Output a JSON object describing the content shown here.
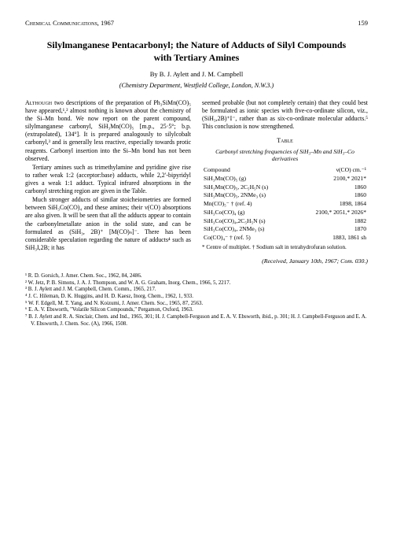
{
  "header": {
    "journal": "Chemical Communications, 1967",
    "page": "159"
  },
  "title": "Silylmanganese Pentacarbonyl; the Nature of Adducts of Silyl Compounds with Tertiary Amines",
  "authors": "By B. J. Aylett and J. M. Campbell",
  "affiliation": "(Chemistry Department, Westfield College, London, N.W.3.)",
  "body": {
    "left": [
      "Although two descriptions of the preparation of Ph₃SiMn(CO)₅ have appeared,¹,² almost nothing is known about the chemistry of the Si–Mn bond. We now report on the parent compound, silylmanganese carbonyl, SiH₃Mn(CO)₅ [m.p., 25·5°; b.p. (extrapolated), 134°]. It is prepared analogously to silylcobalt carbonyl,³ and is generally less reactive, especially towards protic reagents. Carbonyl insertion into the Si–Mn bond has not been observed.",
      "Tertiary amines such as trimethylamine and pyridine give rise to rather weak 1:2 (acceptor:base) adducts, while 2,2′-bipyridyl gives a weak 1:1 adduct. Typical infrared absorptions in the carbonyl stretching region are given in the Table.",
      "Much stronger adducts of similar stoicheiometries are formed between SiH₃Co(CO)₄ and these amines; their ν(CO) absorptions are also given. It will be seen that all the adducts appear to contain the carbonylmetallate anion in the solid state, and can be formulated as (SiH₃, 2B)⁺ [M(CO)ₙ]⁻. There has been considerable speculation regarding the nature of adducts⁴ such as SiH₃I,2B; it has"
    ],
    "right": [
      "seemed probable (but not completely certain) that they could best be formulated as ionic species with five-co-ordinate silicon, viz., (SiH₃,2B)⁺I⁻, rather than as six-co-ordinate molecular adducts.⁵ This conclusion is now strengthened."
    ]
  },
  "table": {
    "caption": "Table",
    "subcaption": "Carbonyl stretching frequencies of SiH₃–Mn and SiH₃–Co derivatives",
    "head_compound": "Compound",
    "head_freq": "ν(CO) cm.⁻¹",
    "rows": [
      [
        "SiH₃Mn(CO)₅ (g)",
        "2100,* 2021*"
      ],
      [
        "SiH₃Mn(CO)₅, 2C₅H₅N (s)",
        "1860"
      ],
      [
        "SiH₃Mn(CO)₅, 2NMe₃ (s)",
        "1860"
      ],
      [
        "Mn(CO)₅⁻ † (ref. 4)",
        "1898, 1864"
      ],
      [
        "SiH₃Co(CO)₄ (g)",
        "2100,* 2051,* 2026*"
      ],
      [
        "SiH₃Co(CO)₄,2C₅H₅N (s)",
        "1882"
      ],
      [
        "SiH₃Co(CO)₄, 2NMe₃ (s)",
        "1870"
      ],
      [
        "Co(CO)₄⁻ † (ref. 5)",
        "1883, 1861 sh"
      ]
    ],
    "footnote": "* Centre of multiplet.   † Sodium salt in tetrahydrofuran solution."
  },
  "received": "(Received, January 10th, 1967; Com. 030.)",
  "references": [
    "¹ R. D. Gorsich, J. Amer. Chem. Soc., 1962, 84, 2486.",
    "² W. Jetz, P. B. Simons, J. A. J. Thompson, and W. A. G. Graham, Inorg. Chem., 1966, 5, 2217.",
    "³ B. J. Aylett and J. M. Campbell, Chem. Comm., 1965, 217.",
    "⁴ J. C. Hileman, D. K. Huggins, and H. D. Kaesz, Inorg. Chem., 1962, 1, 933.",
    "⁵ W. F. Edgell, M. T. Yang, and N. Koizumi, J. Amer. Chem. Soc., 1965, 87, 2563.",
    "⁶ E. A. V. Ebsworth, \"Volatile Silicon Compounds,\" Pergamon, Oxford, 1963.",
    "⁷ B. J. Aylett and R. A. Sinclair, Chem. and Ind., 1965, 301; H. J. Campbell-Ferguson and E. A. V. Ebsworth, ibid., p. 301; H. J. Campbell-Ferguson and E. A. V. Ebsworth, J. Chem. Soc. (A), 1966, 1508."
  ]
}
